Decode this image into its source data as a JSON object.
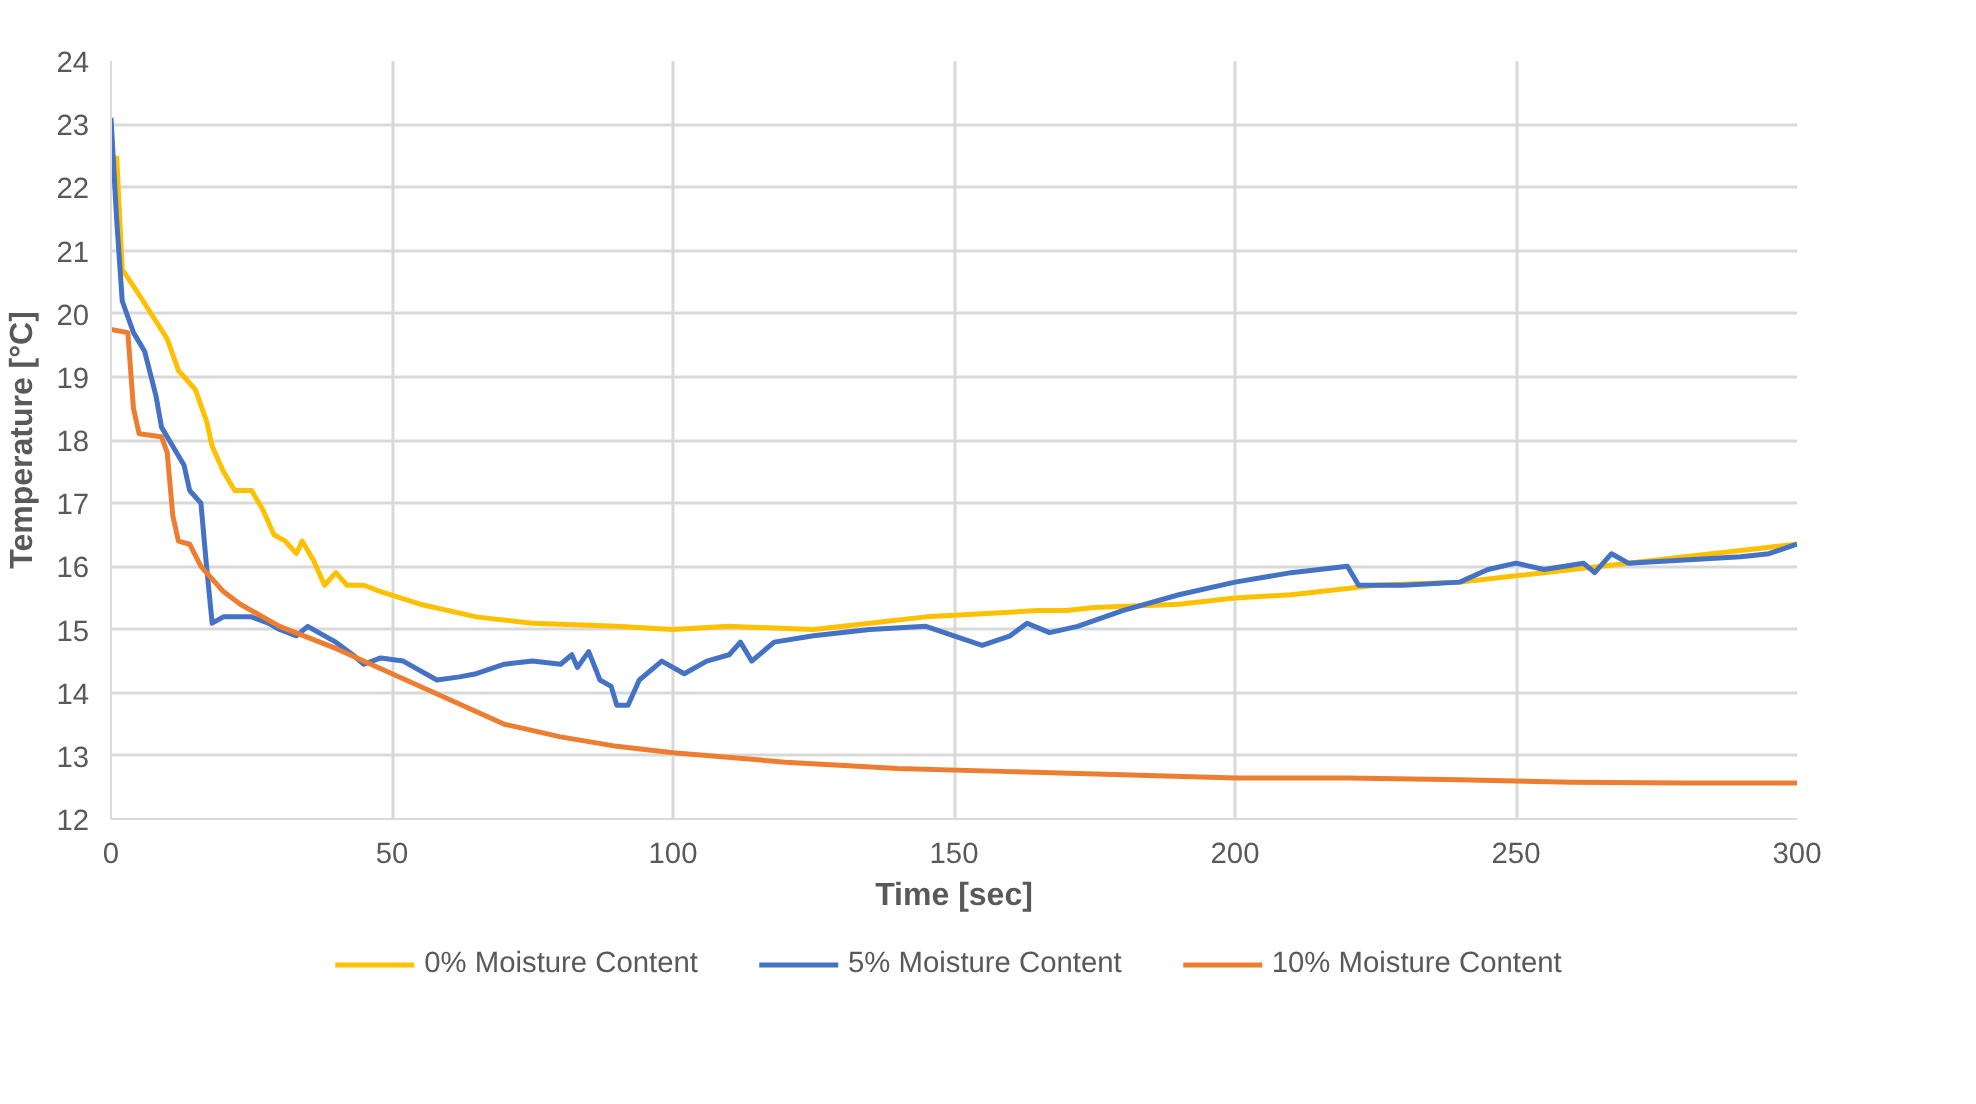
{
  "chart_data": {
    "type": "line",
    "xlabel": "Time [sec]",
    "ylabel": "Temperature [°C]",
    "xlim": [
      0,
      300
    ],
    "xticks": [
      0,
      50,
      100,
      150,
      200,
      250,
      300
    ],
    "ylim": [
      12,
      24
    ],
    "yticks": [
      12,
      13,
      14,
      15,
      16,
      17,
      18,
      19,
      20,
      21,
      22,
      23,
      24
    ],
    "grid": true,
    "legend": "bottom",
    "marker": "none",
    "line_style": "solid",
    "series": [
      {
        "name": "0% Moisture Content",
        "color": "#ffc000",
        "x": [
          1,
          2,
          5,
          10,
          12,
          15,
          17,
          18,
          20,
          22,
          25,
          27,
          29,
          31,
          33,
          34,
          36,
          38,
          40,
          42,
          45,
          48,
          55,
          65,
          75,
          90,
          100,
          110,
          125,
          135,
          145,
          155,
          165,
          170,
          175,
          190,
          200,
          210,
          220,
          225,
          240,
          250,
          260,
          270,
          280,
          290,
          300
        ],
        "values": [
          22.5,
          20.7,
          20.3,
          19.6,
          19.1,
          18.8,
          18.3,
          17.9,
          17.5,
          17.2,
          17.2,
          16.9,
          16.5,
          16.4,
          16.2,
          16.4,
          16.1,
          15.7,
          15.9,
          15.7,
          15.7,
          15.6,
          15.4,
          15.2,
          15.1,
          15.05,
          15.0,
          15.05,
          15.0,
          15.1,
          15.2,
          15.25,
          15.3,
          15.3,
          15.35,
          15.4,
          15.5,
          15.55,
          15.65,
          15.7,
          15.75,
          15.85,
          15.95,
          16.05,
          16.15,
          16.25,
          16.35
        ]
      },
      {
        "name": "5% Moisture Content",
        "color": "#4472c4",
        "x": [
          0,
          1,
          2,
          4,
          6,
          8,
          9,
          11,
          13,
          14,
          16,
          17,
          18,
          20,
          25,
          28,
          30,
          33,
          35,
          38,
          40,
          43,
          45,
          48,
          52,
          55,
          58,
          62,
          65,
          70,
          75,
          80,
          82,
          83,
          85,
          87,
          89,
          90,
          92,
          94,
          98,
          102,
          106,
          110,
          112,
          114,
          118,
          125,
          135,
          145,
          150,
          155,
          160,
          163,
          167,
          172,
          180,
          190,
          200,
          210,
          220,
          222,
          230,
          240,
          245,
          250,
          255,
          262,
          264,
          267,
          270,
          280,
          290,
          295,
          300
        ],
        "values": [
          23.1,
          21.5,
          20.2,
          19.7,
          19.4,
          18.7,
          18.2,
          17.9,
          17.6,
          17.2,
          17.0,
          16.0,
          15.1,
          15.2,
          15.2,
          15.1,
          15.0,
          14.9,
          15.05,
          14.9,
          14.8,
          14.6,
          14.45,
          14.55,
          14.5,
          14.35,
          14.2,
          14.25,
          14.3,
          14.45,
          14.5,
          14.45,
          14.6,
          14.4,
          14.65,
          14.2,
          14.1,
          13.8,
          13.8,
          14.2,
          14.5,
          14.3,
          14.5,
          14.6,
          14.8,
          14.5,
          14.8,
          14.9,
          15.0,
          15.05,
          14.9,
          14.75,
          14.9,
          15.1,
          14.95,
          15.05,
          15.3,
          15.55,
          15.75,
          15.9,
          16.0,
          15.7,
          15.7,
          15.75,
          15.95,
          16.05,
          15.95,
          16.05,
          15.9,
          16.2,
          16.05,
          16.1,
          16.15,
          16.2,
          16.35
        ]
      },
      {
        "name": "10% Moisture Content",
        "color": "#ed7d31",
        "x": [
          0,
          3,
          4,
          5,
          9,
          10,
          11,
          12,
          14,
          16,
          18,
          20,
          23,
          30,
          40,
          50,
          60,
          70,
          80,
          90,
          100,
          120,
          140,
          160,
          180,
          200,
          220,
          240,
          260,
          280,
          300
        ],
        "values": [
          19.75,
          19.7,
          18.5,
          18.1,
          18.05,
          17.8,
          16.8,
          16.4,
          16.35,
          16.0,
          15.8,
          15.6,
          15.4,
          15.05,
          14.7,
          14.3,
          13.9,
          13.5,
          13.3,
          13.15,
          13.05,
          12.9,
          12.8,
          12.75,
          12.7,
          12.65,
          12.65,
          12.62,
          12.58,
          12.57,
          12.57
        ]
      }
    ]
  }
}
